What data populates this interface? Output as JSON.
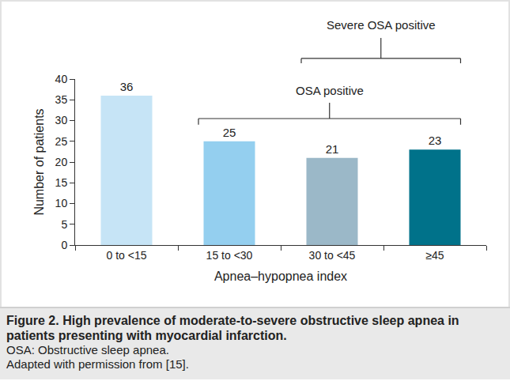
{
  "chart_data": {
    "type": "bar",
    "categories": [
      "0 to <15",
      "15 to <30",
      "30 to <45",
      "≥45"
    ],
    "values": [
      36,
      25,
      21,
      23
    ],
    "colors": [
      "#c6e4f6",
      "#94cfef",
      "#9bb8c8",
      "#00728a"
    ],
    "data_labels": true,
    "x_label": "Apnea–hypopnea index",
    "y_label": "Number of patients",
    "ylim": [
      0,
      40
    ],
    "yticks": [
      0,
      5,
      10,
      15,
      20,
      25,
      30,
      35,
      40
    ],
    "grid": false,
    "brackets": [
      {
        "text": "OSA positive",
        "categories": [
          "15 to <30",
          "≥45"
        ]
      },
      {
        "text": "Severe OSA positive",
        "categories": [
          "30 to <45",
          "≥45"
        ]
      }
    ],
    "caption": {
      "title": "Figure 2. High prevalence of moderate-to-severe obstructive sleep apnea in patients presenting with myocardial infarction.",
      "lines": [
        "OSA: Obstructive sleep apnea.",
        "Adapted with permission from [15]."
      ]
    }
  }
}
